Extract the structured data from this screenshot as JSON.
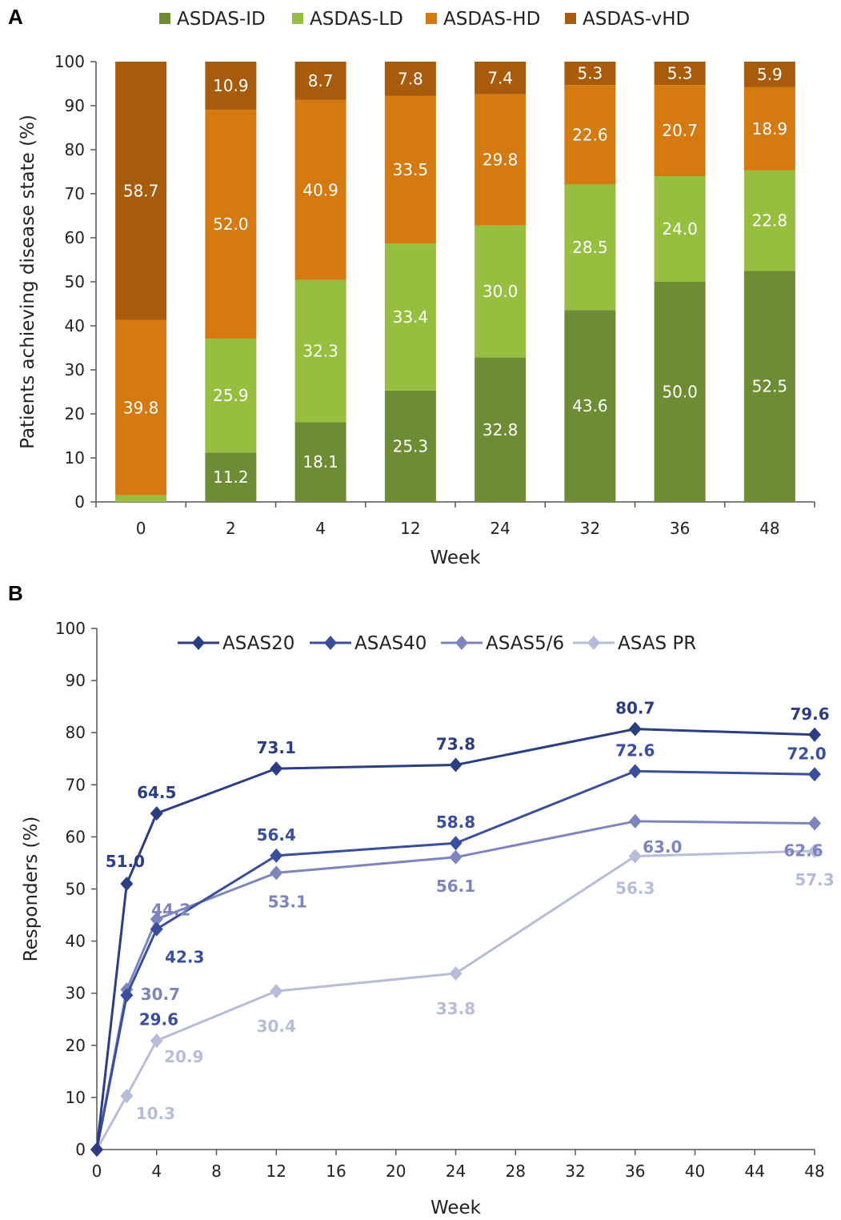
{
  "panels": {
    "a": "A",
    "b": "B"
  },
  "chart_data": [
    {
      "type": "bar",
      "stacked": true,
      "categories": [
        "0",
        "2",
        "4",
        "12",
        "24",
        "32",
        "36",
        "48"
      ],
      "xlabel": "Week",
      "ylabel": "Patients achieving disease state (%)",
      "ylim": [
        0,
        100
      ],
      "yticks": [
        "0",
        "10",
        "20",
        "30",
        "40",
        "50",
        "60",
        "70",
        "80",
        "90",
        "100"
      ],
      "legend_position": "top",
      "series": [
        {
          "name": "ASDAS-ID",
          "color": "#6e8c34",
          "values": [
            0,
            11.2,
            18.1,
            25.3,
            32.8,
            43.6,
            50.0,
            52.5
          ],
          "labels": [
            "",
            "11.2",
            "18.1",
            "25.3",
            "32.8",
            "43.6",
            "50.0",
            "52.5"
          ]
        },
        {
          "name": "ASDAS-LD",
          "color": "#96bf3f",
          "values": [
            1.5,
            25.9,
            32.3,
            33.4,
            30.0,
            28.5,
            24.0,
            22.8
          ],
          "labels": [
            "",
            "25.9",
            "32.3",
            "33.4",
            "30.0",
            "28.5",
            "24.0",
            "22.8"
          ]
        },
        {
          "name": "ASDAS-HD",
          "color": "#d57a10",
          "values": [
            39.8,
            52.0,
            40.9,
            33.5,
            29.8,
            22.6,
            20.7,
            18.9
          ],
          "labels": [
            "39.8",
            "52.0",
            "40.9",
            "33.5",
            "29.8",
            "22.6",
            "20.7",
            "18.9"
          ]
        },
        {
          "name": "ASDAS-vHD",
          "color": "#a85b0a",
          "values": [
            58.7,
            10.9,
            8.7,
            7.8,
            7.4,
            5.3,
            5.3,
            5.9
          ],
          "labels": [
            "58.7",
            "10.9",
            "8.7",
            "7.8",
            "7.4",
            "5.3",
            "5.3",
            "5.9"
          ]
        }
      ]
    },
    {
      "type": "line",
      "xlabel": "Week",
      "ylabel": "Responders (%)",
      "xlim": [
        0,
        48
      ],
      "ylim": [
        0,
        100
      ],
      "xticks": [
        "0",
        "4",
        "8",
        "12",
        "16",
        "20",
        "24",
        "28",
        "32",
        "36",
        "40",
        "44",
        "48"
      ],
      "yticks": [
        "0",
        "10",
        "20",
        "30",
        "40",
        "50",
        "60",
        "70",
        "80",
        "90",
        "100"
      ],
      "legend_position": "top",
      "series": [
        {
          "name": "ASAS20",
          "color": "#2c3e82",
          "x": [
            0,
            2,
            4,
            12,
            24,
            36,
            48
          ],
          "y": [
            0,
            51.0,
            64.5,
            73.1,
            73.8,
            80.7,
            79.6
          ],
          "labels": [
            "",
            "51.0",
            "64.5",
            "73.1",
            "73.8",
            "80.7",
            "79.6"
          ]
        },
        {
          "name": "ASAS40",
          "color": "#3a4f9c",
          "x": [
            0,
            2,
            4,
            12,
            24,
            36,
            48
          ],
          "y": [
            0,
            29.6,
            42.3,
            56.4,
            58.8,
            72.6,
            72.0
          ],
          "labels": [
            "",
            "29.6",
            "42.3",
            "56.4",
            "58.8",
            "72.6",
            "72.0"
          ]
        },
        {
          "name": "ASAS5/6",
          "color": "#7c86bd",
          "x": [
            0,
            2,
            4,
            12,
            24,
            36,
            48
          ],
          "y": [
            0,
            30.7,
            44.2,
            53.1,
            56.1,
            63.0,
            62.6
          ],
          "labels": [
            "",
            "30.7",
            "44.2",
            "53.1",
            "56.1",
            "63.0",
            "62.6"
          ]
        },
        {
          "name": "ASAS PR",
          "color": "#b7bcd9",
          "x": [
            0,
            2,
            4,
            12,
            24,
            36,
            48
          ],
          "y": [
            0,
            10.3,
            20.9,
            30.4,
            33.8,
            56.3,
            57.3
          ],
          "labels": [
            "",
            "10.3",
            "20.9",
            "30.4",
            "33.8",
            "56.3",
            "57.3"
          ]
        }
      ]
    }
  ]
}
